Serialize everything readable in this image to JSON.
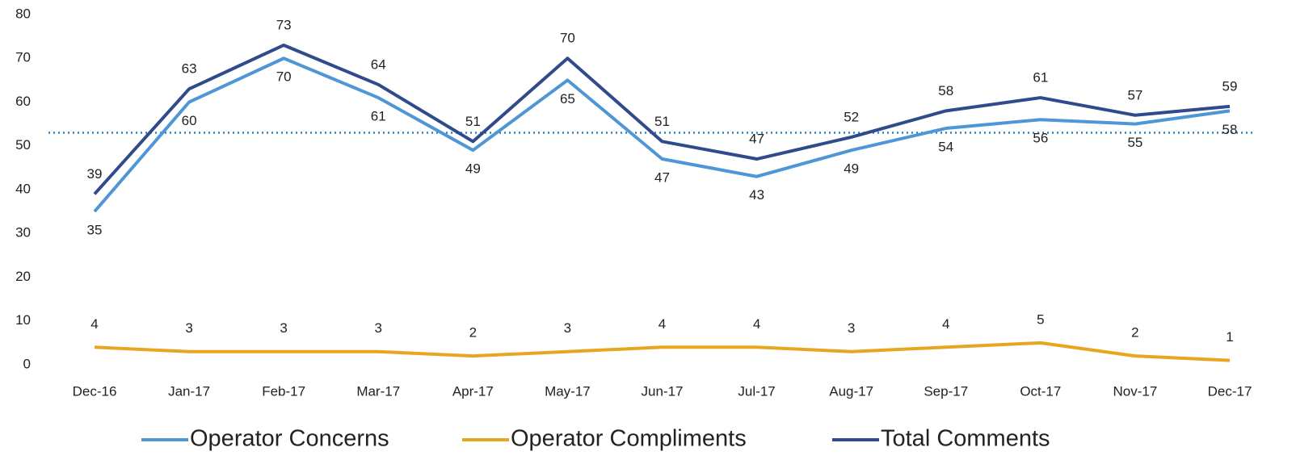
{
  "chart_data": {
    "type": "line",
    "categories": [
      "Dec-16",
      "Jan-17",
      "Feb-17",
      "Mar-17",
      "Apr-17",
      "May-17",
      "Jun-17",
      "Jul-17",
      "Aug-17",
      "Sep-17",
      "Oct-17",
      "Nov-17",
      "Dec-17"
    ],
    "series": [
      {
        "name": "Operator Concerns",
        "color": "#4e96d6",
        "values": [
          35,
          60,
          70,
          61,
          49,
          65,
          47,
          43,
          49,
          54,
          56,
          55,
          58
        ]
      },
      {
        "name": "Operator Compliments",
        "color": "#e8a620",
        "values": [
          4,
          3,
          3,
          3,
          2,
          3,
          4,
          4,
          3,
          4,
          5,
          2,
          1
        ]
      },
      {
        "name": "Total Comments",
        "color": "#2f4b8c",
        "values": [
          39,
          63,
          73,
          64,
          51,
          70,
          51,
          47,
          52,
          58,
          61,
          57,
          59
        ]
      }
    ],
    "reference_line": {
      "value": 53,
      "color": "#2a7fc0"
    },
    "ylim": [
      0,
      80
    ],
    "yticks": [
      0,
      10,
      20,
      30,
      40,
      50,
      60,
      70,
      80
    ],
    "grid": false,
    "legend": "bottom"
  }
}
